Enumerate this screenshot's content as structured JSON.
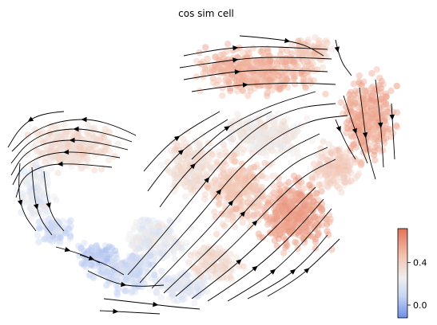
{
  "chart_data": {
    "type": "scatter",
    "title": "cos sim cell",
    "xlabel": "",
    "ylabel": "",
    "grid": false,
    "axes_visible": false,
    "overlay": "velocity-streamlines",
    "colormap": [
      "#6e8ee8",
      "#c9d6f4",
      "#eeeeee",
      "#f3c2ae",
      "#e2725a"
    ],
    "colorbar": {
      "orientation": "vertical",
      "position": "bottom-right",
      "vmin": -0.12,
      "vmax": 0.72,
      "ticks": [
        {
          "value": 0.0,
          "label": "0.0"
        },
        {
          "value": 0.4,
          "label": "0.4"
        }
      ]
    },
    "marker_colors": {
      "arrow": "#000000",
      "stream": "#000000"
    }
  }
}
